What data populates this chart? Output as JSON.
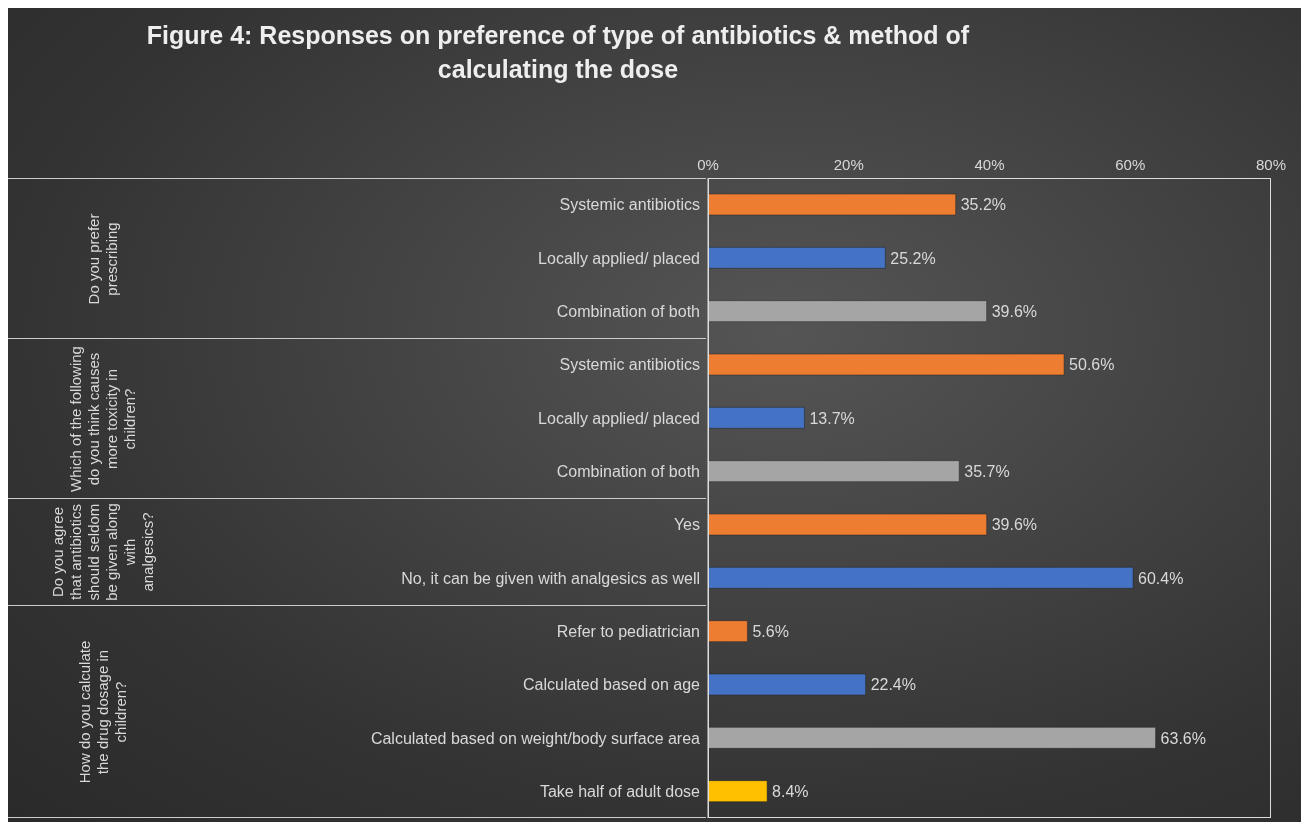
{
  "chart_data": {
    "type": "bar",
    "orientation": "horizontal",
    "title": "Figure 4: Responses on preference of type of antibiotics & method of calculating the dose",
    "categories": [
      "Systemic antibiotics",
      "Locally applied/ placed",
      "Combination of both",
      "Systemic antibiotics",
      "Locally applied/ placed",
      "Combination of both",
      "Yes",
      "No, it can be given with analgesics as well",
      "Refer to pediatrician",
      "Calculated based on age",
      "Calculated based on weight/body surface area",
      "Take half of adult dose"
    ],
    "values": [
      35.2,
      25.2,
      39.6,
      50.6,
      13.7,
      35.7,
      39.6,
      60.4,
      5.6,
      22.4,
      63.6,
      8.4
    ],
    "value_labels": [
      "35.2%",
      "25.2%",
      "39.6%",
      "50.6%",
      "13.7%",
      "35.7%",
      "39.6%",
      "60.4%",
      "5.6%",
      "22.4%",
      "63.6%",
      "8.4%"
    ],
    "colors": [
      "#ed7d31",
      "#4472c4",
      "#a5a5a5",
      "#ed7d31",
      "#4472c4",
      "#a5a5a5",
      "#ed7d31",
      "#4472c4",
      "#ed7d31",
      "#4472c4",
      "#a5a5a5",
      "#ffc000"
    ],
    "xlim": [
      0,
      80
    ],
    "xticks": [
      {
        "value": 0,
        "label": "0%"
      },
      {
        "value": 20,
        "label": "20%"
      },
      {
        "value": 40,
        "label": "40%"
      },
      {
        "value": 60,
        "label": "60%"
      },
      {
        "value": 80,
        "label": "80%"
      }
    ],
    "annotations": [
      "Do you prefer prescribing",
      "Which of the following do you think causes more toxicity in children?",
      "Do you agree that antibiotics should seldom be given along with analgesics?",
      "How do you calculate the drug dosage in children?"
    ],
    "grid": false
  }
}
